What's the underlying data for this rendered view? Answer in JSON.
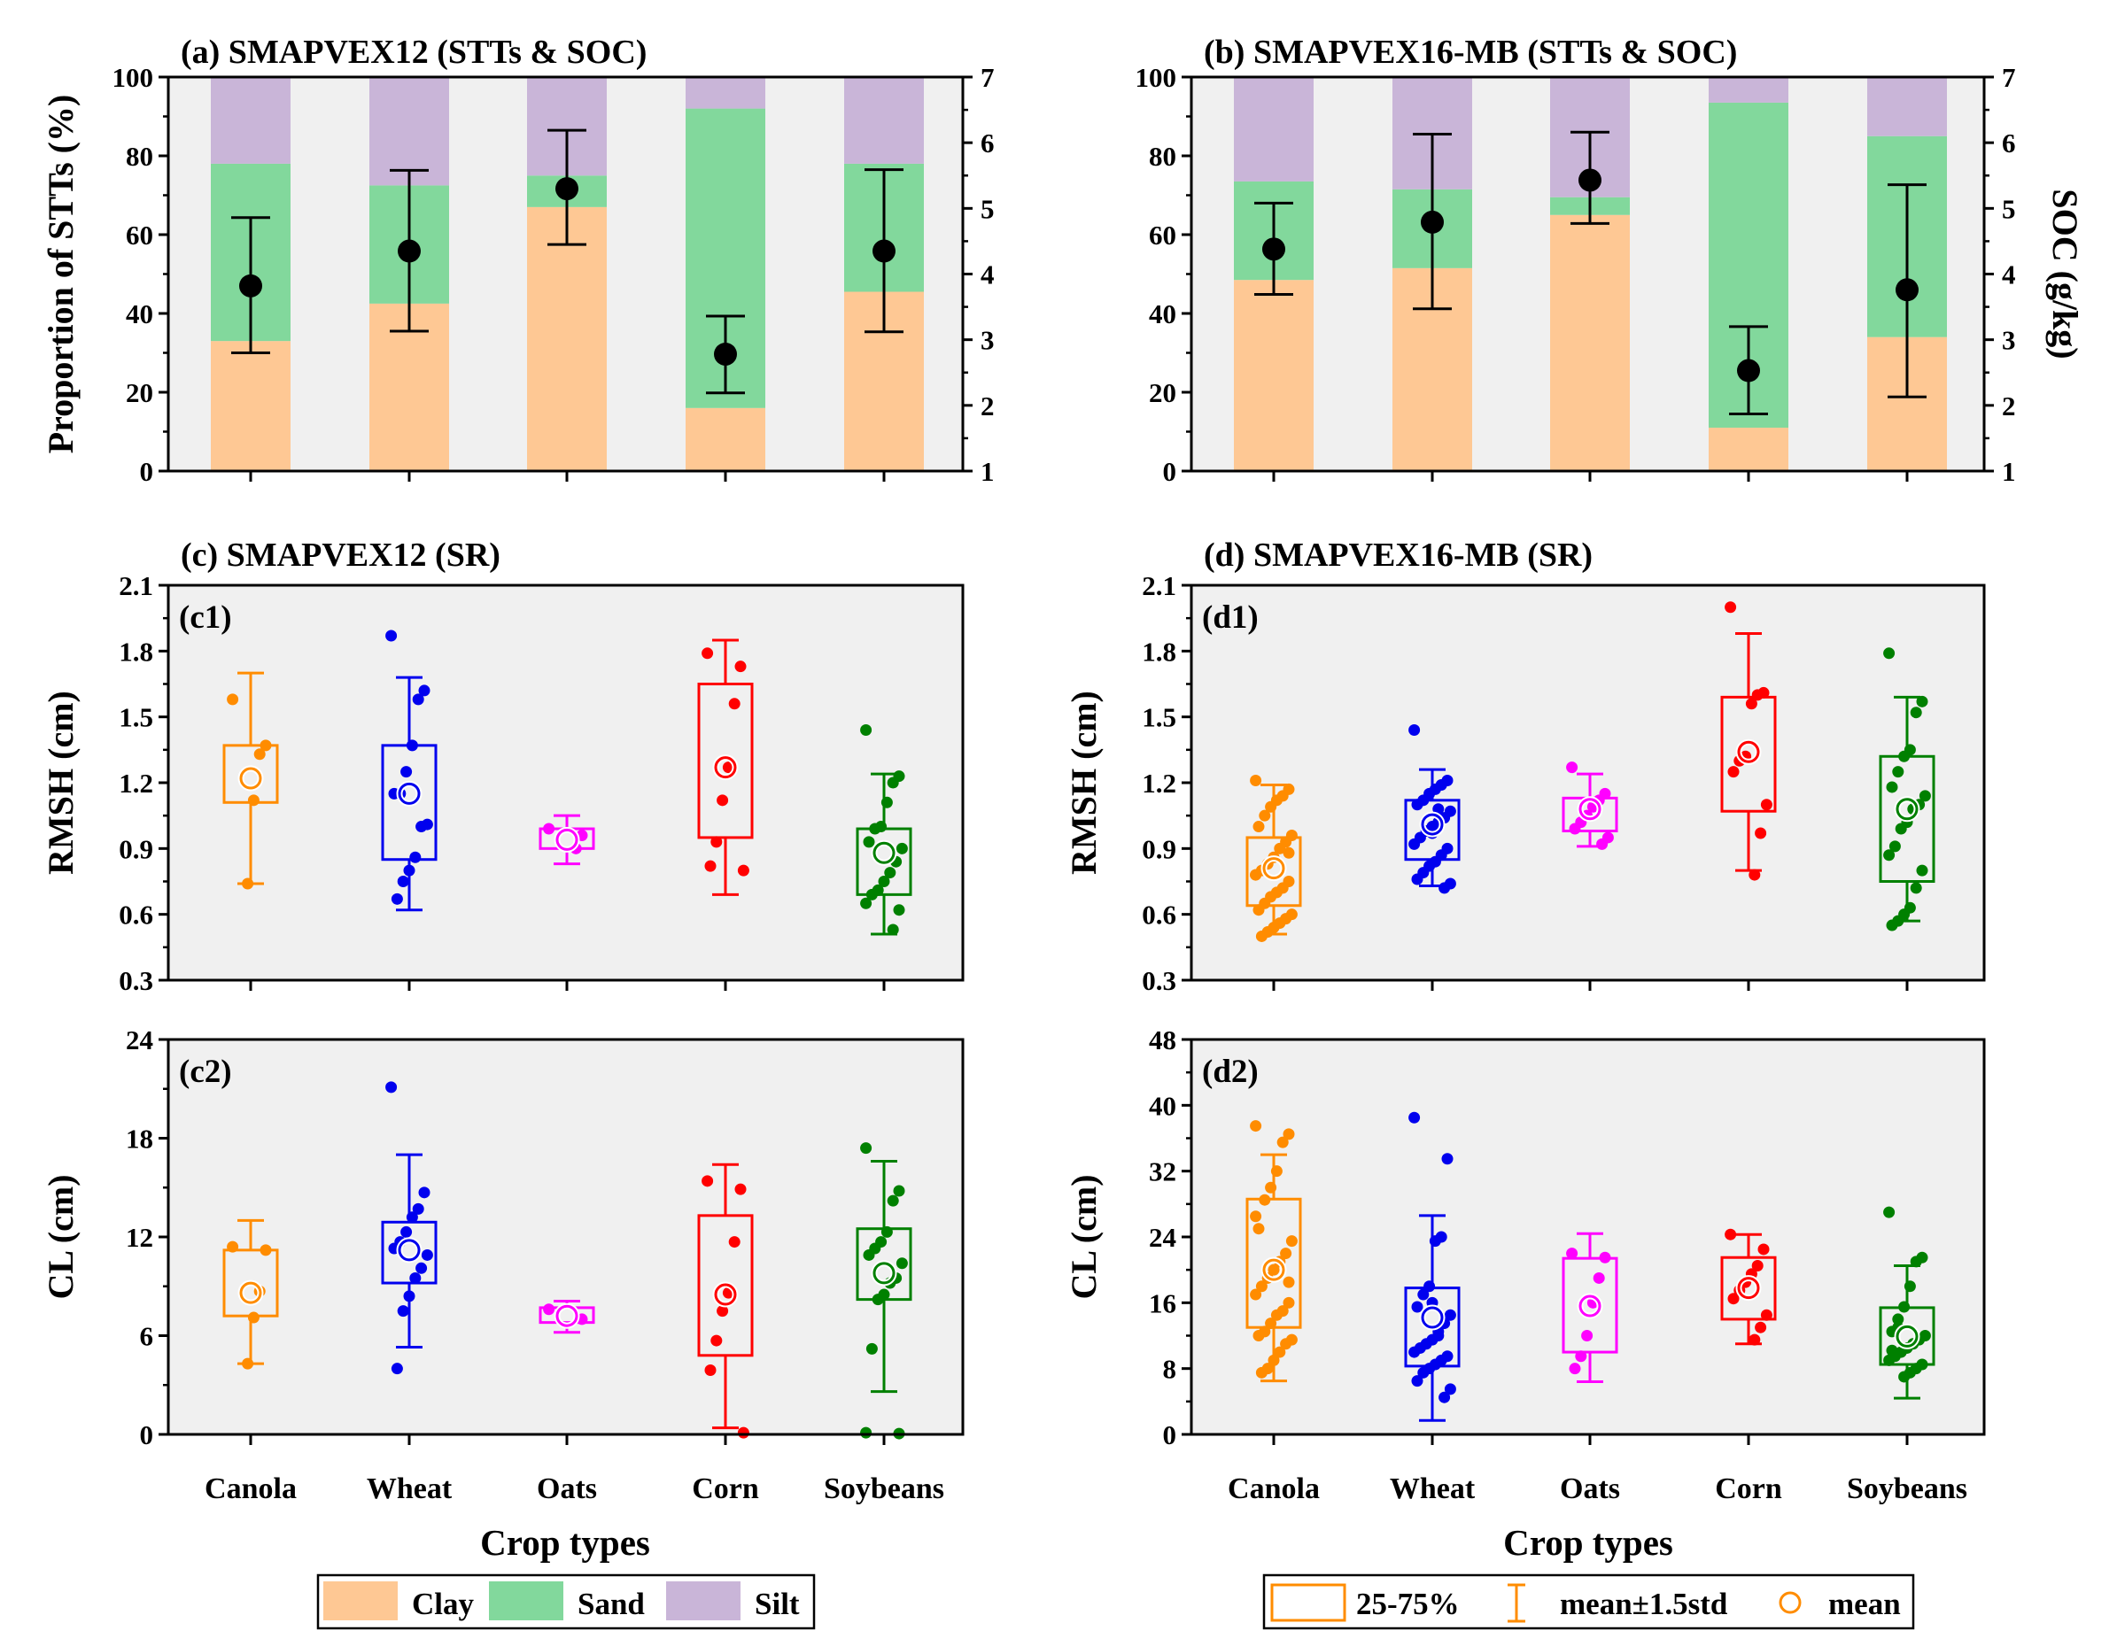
{
  "colors": {
    "clay": "#fec894",
    "sand": "#82d89c",
    "silt": "#c9b5d8",
    "panel_bg": "#f0f0f0",
    "crop_colors": [
      "#ff8c00",
      "#0000ee",
      "#ff00ff",
      "#ff0000",
      "#008000"
    ]
  },
  "crops": [
    "Canola",
    "Wheat",
    "Oats",
    "Corn",
    "Soybeans"
  ],
  "x_axis_title": "Crop types",
  "legend_soil": {
    "clay": "Clay",
    "sand": "Sand",
    "silt": "Silt"
  },
  "legend_box": {
    "range": "25-75%",
    "whisker": "mean±1.5std",
    "mean": "mean"
  },
  "chart_data": [
    {
      "id": "a",
      "type": "bar",
      "stacked": true,
      "title": "(a) SMAPVEX12 (STTs & SOC)",
      "ylabel": "Proportion of STTs (%)",
      "ylabel_right": "",
      "ylim": [
        0,
        100
      ],
      "yticks": [
        "0",
        "20",
        "40",
        "60",
        "80",
        "100"
      ],
      "y2lim": [
        1,
        7
      ],
      "y2ticks": [
        "1",
        "2",
        "3",
        "4",
        "5",
        "6",
        "7"
      ],
      "categories": [
        "Canola",
        "Wheat",
        "Oats",
        "Corn",
        "Soybeans"
      ],
      "series": [
        {
          "name": "Clay",
          "values": [
            33,
            42.5,
            67,
            16,
            45.5
          ]
        },
        {
          "name": "Sand",
          "values": [
            45,
            30,
            8,
            76,
            32.5
          ]
        },
        {
          "name": "Silt",
          "values": [
            22,
            27.5,
            25,
            8,
            22
          ]
        }
      ],
      "soc": {
        "mean": [
          3.82,
          4.35,
          5.3,
          2.78,
          4.35
        ],
        "low": [
          2.8,
          3.13,
          4.45,
          2.19,
          3.12
        ],
        "high": [
          4.86,
          5.58,
          6.19,
          3.36,
          5.59
        ]
      }
    },
    {
      "id": "b",
      "type": "bar",
      "stacked": true,
      "title": "(b) SMAPVEX16-MB (STTs & SOC)",
      "ylabel": "",
      "ylabel_right": "SOC (g/kg)",
      "ylim": [
        0,
        100
      ],
      "yticks": [
        "0",
        "20",
        "40",
        "60",
        "80",
        "100"
      ],
      "y2lim": [
        1,
        7
      ],
      "y2ticks": [
        "1",
        "2",
        "3",
        "4",
        "5",
        "6",
        "7"
      ],
      "categories": [
        "Canola",
        "Wheat",
        "Oats",
        "Corn",
        "Soybeans"
      ],
      "series": [
        {
          "name": "Clay",
          "values": [
            48.5,
            51.5,
            65,
            11,
            34
          ]
        },
        {
          "name": "Sand",
          "values": [
            25,
            20,
            4.5,
            82.5,
            51
          ]
        },
        {
          "name": "Silt",
          "values": [
            26.5,
            28.5,
            30.5,
            6.5,
            15
          ]
        }
      ],
      "soc": {
        "mean": [
          4.38,
          4.79,
          5.43,
          2.53,
          3.76
        ],
        "low": [
          3.69,
          3.47,
          4.77,
          1.87,
          2.13
        ],
        "high": [
          5.08,
          6.13,
          6.16,
          3.2,
          5.36
        ]
      }
    },
    {
      "id": "c1",
      "type": "scatter",
      "box": true,
      "group_title": "(c) SMAPVEX12 (SR)",
      "label": "(c1)",
      "ylabel": "RMSH (cm)",
      "ylim": [
        0.3,
        2.1
      ],
      "yticks": [
        "0.3",
        "0.6",
        "0.9",
        "1.2",
        "1.5",
        "1.8",
        "2.1"
      ],
      "categories": [
        "Canola",
        "Wheat",
        "Oats",
        "Corn",
        "Soybeans"
      ],
      "groups": [
        {
          "q1": 1.11,
          "q3": 1.37,
          "mean": 1.22,
          "lo": 0.74,
          "hi": 1.7,
          "points": [
            1.58,
            1.37,
            1.33,
            1.12,
            0.74
          ]
        },
        {
          "q1": 0.85,
          "q3": 1.37,
          "mean": 1.15,
          "lo": 0.62,
          "hi": 1.68,
          "points": [
            1.87,
            1.62,
            1.58,
            1.37,
            1.25,
            1.15,
            1.15,
            1.01,
            1.0,
            0.86,
            0.8,
            0.75,
            0.67
          ]
        },
        {
          "q1": 0.9,
          "q3": 0.99,
          "mean": 0.94,
          "lo": 0.83,
          "hi": 1.05,
          "points": [
            0.99,
            0.96,
            0.9
          ]
        },
        {
          "q1": 0.95,
          "q3": 1.65,
          "mean": 1.27,
          "lo": 0.69,
          "hi": 1.85,
          "points": [
            1.79,
            1.73,
            1.56,
            1.27,
            1.12,
            0.93,
            0.82,
            0.8
          ]
        },
        {
          "q1": 0.69,
          "q3": 0.99,
          "mean": 0.88,
          "lo": 0.51,
          "hi": 1.24,
          "points": [
            1.44,
            1.23,
            1.2,
            1.11,
            1.0,
            0.99,
            0.93,
            0.9,
            0.84,
            0.79,
            0.75,
            0.71,
            0.69,
            0.65,
            0.62,
            0.53
          ]
        }
      ]
    },
    {
      "id": "c2",
      "type": "scatter",
      "box": true,
      "label": "(c2)",
      "ylabel": "CL (cm)",
      "ylim": [
        0,
        24
      ],
      "yticks": [
        "0",
        "6",
        "12",
        "18",
        "24"
      ],
      "categories": [
        "Canola",
        "Wheat",
        "Oats",
        "Corn",
        "Soybeans"
      ],
      "groups": [
        {
          "q1": 7.2,
          "q3": 11.2,
          "mean": 8.6,
          "lo": 4.3,
          "hi": 13.0,
          "points": [
            11.4,
            11.2,
            8.7,
            7.1,
            4.3
          ]
        },
        {
          "q1": 9.2,
          "q3": 12.9,
          "mean": 11.2,
          "lo": 5.3,
          "hi": 17.0,
          "points": [
            21.1,
            14.7,
            13.7,
            13.2,
            12.3,
            11.7,
            11.3,
            10.9,
            10.1,
            9.5,
            8.4,
            7.5,
            4.0
          ]
        },
        {
          "q1": 6.8,
          "q3": 7.7,
          "mean": 7.2,
          "lo": 6.2,
          "hi": 8.1,
          "points": [
            7.6,
            7.0
          ]
        },
        {
          "q1": 4.8,
          "q3": 13.3,
          "mean": 8.5,
          "lo": 0.4,
          "hi": 16.4,
          "points": [
            15.4,
            14.9,
            11.7,
            8.6,
            7.5,
            5.7,
            3.9,
            0.1
          ]
        },
        {
          "q1": 8.2,
          "q3": 12.5,
          "mean": 9.8,
          "lo": 2.6,
          "hi": 16.6,
          "points": [
            17.4,
            14.8,
            14.2,
            12.3,
            11.7,
            11.3,
            10.9,
            10.4,
            9.5,
            9.2,
            8.5,
            8.2,
            5.2,
            0.1,
            0.05
          ]
        }
      ]
    },
    {
      "id": "d1",
      "type": "scatter",
      "box": true,
      "group_title": "(d) SMAPVEX16-MB (SR)",
      "label": "(d1)",
      "ylabel": "RMSH (cm)",
      "ylim": [
        0.3,
        2.1
      ],
      "yticks": [
        "0.3",
        "0.6",
        "0.9",
        "1.2",
        "1.5",
        "1.8",
        "2.1"
      ],
      "categories": [
        "Canola",
        "Wheat",
        "Oats",
        "Corn",
        "Soybeans"
      ],
      "groups": [
        {
          "q1": 0.64,
          "q3": 0.95,
          "mean": 0.81,
          "lo": 0.51,
          "hi": 1.19,
          "points": [
            1.21,
            1.17,
            1.14,
            1.12,
            1.09,
            1.05,
            1.0,
            0.96,
            0.93,
            0.9,
            0.86,
            0.83,
            0.8,
            0.78,
            0.75,
            0.72,
            0.7,
            0.68,
            0.65,
            0.62,
            0.6,
            0.58,
            0.56,
            0.54,
            0.52,
            0.5,
            0.78,
            0.88
          ]
        },
        {
          "q1": 0.85,
          "q3": 1.12,
          "mean": 1.01,
          "lo": 0.73,
          "hi": 1.26,
          "points": [
            1.44,
            1.21,
            1.19,
            1.17,
            1.15,
            1.12,
            1.1,
            1.07,
            1.04,
            1.02,
            1.0,
            0.98,
            0.95,
            0.92,
            0.9,
            0.87,
            0.84,
            0.82,
            0.79,
            0.76,
            0.74,
            0.72,
            1.08,
            0.97
          ]
        },
        {
          "q1": 0.98,
          "q3": 1.13,
          "mean": 1.08,
          "lo": 0.91,
          "hi": 1.24,
          "points": [
            1.27,
            1.15,
            1.12,
            1.09,
            1.05,
            1.02,
            0.99,
            0.95,
            0.92
          ]
        },
        {
          "q1": 1.07,
          "q3": 1.59,
          "mean": 1.34,
          "lo": 0.8,
          "hi": 1.88,
          "points": [
            2.0,
            1.61,
            1.6,
            1.56,
            1.32,
            1.3,
            1.25,
            1.1,
            0.97,
            0.78
          ]
        },
        {
          "q1": 0.75,
          "q3": 1.32,
          "mean": 1.08,
          "lo": 0.57,
          "hi": 1.59,
          "points": [
            1.79,
            1.57,
            1.52,
            1.35,
            1.32,
            1.25,
            1.18,
            1.14,
            1.1,
            1.08,
            1.02,
            0.99,
            0.91,
            0.87,
            0.8,
            0.72,
            0.63,
            0.6,
            0.57,
            0.55
          ]
        }
      ]
    },
    {
      "id": "d2",
      "type": "scatter",
      "box": true,
      "label": "(d2)",
      "ylabel": "CL (cm)",
      "ylim": [
        0,
        48
      ],
      "yticks": [
        "0",
        "8",
        "16",
        "24",
        "32",
        "40",
        "48"
      ],
      "categories": [
        "Canola",
        "Wheat",
        "Oats",
        "Corn",
        "Soybeans"
      ],
      "groups": [
        {
          "q1": 13.0,
          "q3": 28.6,
          "mean": 20.0,
          "lo": 6.5,
          "hi": 34.0,
          "points": [
            37.5,
            36.5,
            35.5,
            32.0,
            30.0,
            28.5,
            25.0,
            23.5,
            22.0,
            21.0,
            20.0,
            19.0,
            18.0,
            17.0,
            16.0,
            15.0,
            14.5,
            13.5,
            12.5,
            12.0,
            11.5,
            11.0,
            10.0,
            9.0,
            8.0,
            7.5,
            26.5,
            18.5
          ]
        },
        {
          "q1": 8.3,
          "q3": 17.8,
          "mean": 14.2,
          "lo": 1.7,
          "hi": 26.6,
          "points": [
            38.5,
            33.5,
            24.0,
            23.5,
            18.0,
            17.0,
            15.5,
            14.5,
            13.5,
            12.5,
            11.5,
            11.0,
            10.5,
            10.0,
            9.5,
            9.0,
            8.5,
            8.0,
            7.5,
            6.5,
            5.5,
            4.5,
            12.0,
            16.0
          ]
        },
        {
          "q1": 10.0,
          "q3": 21.4,
          "mean": 15.6,
          "lo": 6.4,
          "hi": 24.4,
          "points": [
            22.0,
            21.5,
            19.0,
            16.0,
            12.0,
            9.5,
            8.0
          ]
        },
        {
          "q1": 14.0,
          "q3": 21.5,
          "mean": 17.8,
          "lo": 11.0,
          "hi": 24.3,
          "points": [
            24.3,
            22.5,
            20.5,
            19.5,
            18.5,
            17.5,
            16.5,
            14.5,
            13.0,
            11.5
          ]
        },
        {
          "q1": 8.5,
          "q3": 15.4,
          "mean": 11.9,
          "lo": 4.4,
          "hi": 20.5,
          "points": [
            27.0,
            21.5,
            21.0,
            18.0,
            15.5,
            13.0,
            12.5,
            12.0,
            11.5,
            11.0,
            10.5,
            10.0,
            9.5,
            9.0,
            8.5,
            8.0,
            7.5,
            7.0,
            14.0,
            10.2
          ]
        }
      ]
    }
  ]
}
